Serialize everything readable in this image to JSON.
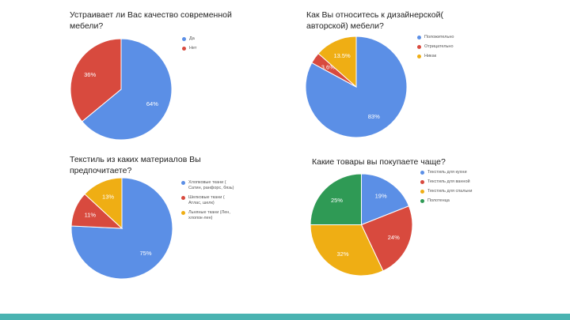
{
  "colors": {
    "blue": "#5b8fe6",
    "red": "#d84a3e",
    "yellow": "#efae14",
    "green": "#2f9a55",
    "footer": "#4ab3b1"
  },
  "chart_data": [
    {
      "type": "pie",
      "title": "Устраивает ли Вас качество современной\nмебели?",
      "series": [
        {
          "name": "Да",
          "value": 64,
          "label": "64%",
          "color": "#5b8fe6"
        },
        {
          "name": "Нет",
          "value": 36,
          "label": "36%",
          "color": "#d84a3e"
        }
      ]
    },
    {
      "type": "pie",
      "title": "Как Вы относитесь к дизайнерской(\nавторской) мебели?",
      "series": [
        {
          "name": "Положительно",
          "value": 83,
          "label": "83%",
          "color": "#5b8fe6"
        },
        {
          "name": "Отрицательно",
          "value": 3.6,
          "label": "3.6%",
          "color": "#d84a3e"
        },
        {
          "name": "Никак",
          "value": 13.5,
          "label": "13.5%",
          "color": "#efae14"
        }
      ]
    },
    {
      "type": "pie",
      "title": "Текстиль из каких материалов Вы\nпредпочитаете?",
      "series": [
        {
          "name": "Хлопковые ткани ( Сатин, ранфорс, бязь)",
          "value": 75,
          "label": "75%",
          "color": "#5b8fe6"
        },
        {
          "name": "Шелковые ткани ( Атлас, шелк)",
          "value": 11,
          "label": "11%",
          "color": "#d84a3e"
        },
        {
          "name": "Льняные ткани (Лен, хлопок-лен)",
          "value": 13,
          "label": "13%",
          "color": "#efae14"
        }
      ]
    },
    {
      "type": "pie",
      "title": "Какие товары вы покупаете чаще?",
      "series": [
        {
          "name": "Текстиль для кухни",
          "value": 19,
          "label": "19%",
          "color": "#5b8fe6"
        },
        {
          "name": "Текстиль для ванной",
          "value": 24,
          "label": "24%",
          "color": "#d84a3e"
        },
        {
          "name": "Текстиль для спальни",
          "value": 32,
          "label": "32%",
          "color": "#efae14"
        },
        {
          "name": "Полотенца",
          "value": 25,
          "label": "25%",
          "color": "#2f9a55"
        }
      ]
    }
  ]
}
